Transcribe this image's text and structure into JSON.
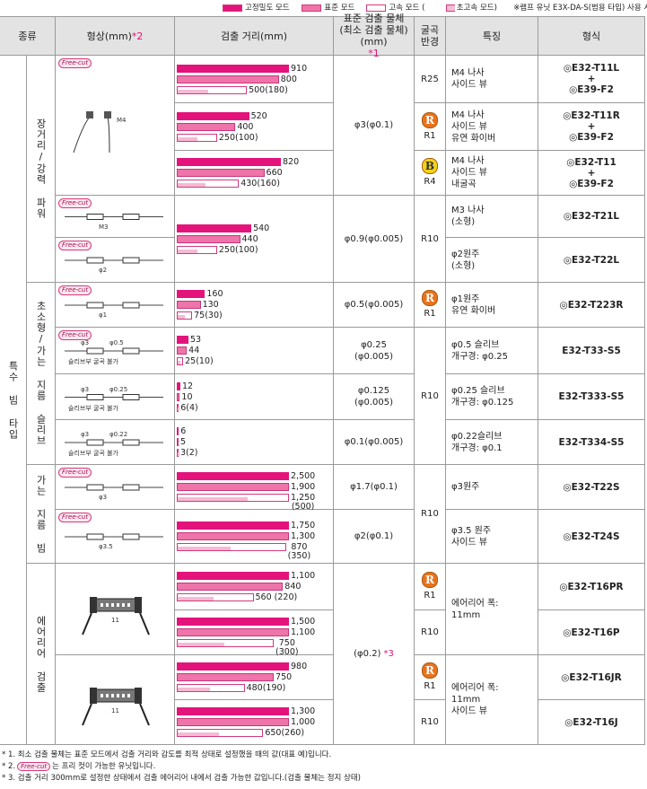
{
  "legend": {
    "items": [
      {
        "name": "고정밀도 모드",
        "color": "#e3137b"
      },
      {
        "name": "표준 모드",
        "color": "#ee74aa"
      },
      {
        "name": "고속 모드 (",
        "color": "#ffffff"
      },
      {
        "name": "초고속 모드)",
        "color": "#f7b9d4"
      }
    ],
    "note": "※램프 유닛 E3X-DA-S(범용 타입) 사용 시"
  },
  "header": {
    "type": "종류",
    "shape": "형상(mm)",
    "shape_note": "*2",
    "distance": "검출 거리(mm)",
    "object": "표준 검출 물체\n(최소 검출 물체)\n(mm)",
    "object_note": "*1",
    "bend": "굴곡\n반경",
    "feature": "특징",
    "model": "형식"
  },
  "category": "특수 빔 타입",
  "groups": [
    "장거리/강력 파워",
    "초소형/가는 지름 슬리브",
    "가는 지름 빔",
    "에어리어 검출"
  ],
  "shapes": [
    {
      "free_cut": "Free-cut",
      "labels": [
        "M4"
      ]
    },
    {
      "free_cut": "Free-cut",
      "labels": [
        "M3"
      ]
    },
    {
      "free_cut": "Free-cut",
      "labels": [
        "φ2"
      ]
    },
    {
      "free_cut": "Free-cut",
      "labels": [
        "φ1"
      ]
    },
    {
      "free_cut": "Free-cut",
      "labels": [
        "φ3",
        "φ0.5",
        "슬리브부 굴곡 불가"
      ]
    },
    {
      "labels": [
        "φ3",
        "φ0.25",
        "슬리브부 굴곡 불가"
      ]
    },
    {
      "labels": [
        "φ3",
        "φ0.22",
        "슬리브부 굴곡 불가"
      ]
    },
    {
      "free_cut": "Free-cut",
      "labels": [
        "φ3"
      ]
    },
    {
      "free_cut": "Free-cut",
      "labels": [
        "φ3.5"
      ]
    },
    {
      "labels": [
        "11"
      ]
    },
    {
      "labels": [
        "11"
      ]
    }
  ],
  "distances": [
    {
      "high": 910,
      "standard": 800,
      "fast": 500,
      "super_fast": 180,
      "labels": [
        "910",
        "800",
        "500(180)"
      ]
    },
    {
      "high": 520,
      "standard": 400,
      "fast": 250,
      "super_fast": 100,
      "labels": [
        "520",
        "400",
        "250(100)"
      ]
    },
    {
      "high": 820,
      "standard": 660,
      "fast": 430,
      "super_fast": 160,
      "labels": [
        "820",
        "660",
        "430(160)"
      ]
    },
    {
      "high": 540,
      "standard": 440,
      "fast": 250,
      "super_fast": 100,
      "labels": [
        "540",
        "440",
        "250(100)"
      ]
    },
    {
      "high": 160,
      "standard": 130,
      "fast": 75,
      "super_fast": 30,
      "labels": [
        "160",
        "130",
        "75(30)"
      ]
    },
    {
      "high": 53,
      "standard": 44,
      "fast": 25,
      "super_fast": 10,
      "labels": [
        "53",
        "44",
        "25(10)"
      ]
    },
    {
      "high": 12,
      "standard": 10,
      "fast": 6,
      "super_fast": 4,
      "labels": [
        "12",
        "10",
        "6(4)"
      ]
    },
    {
      "high": 6,
      "standard": 5,
      "fast": 3,
      "super_fast": 2,
      "labels": [
        "6",
        "5",
        "3(2)"
      ]
    },
    {
      "high": 2500,
      "standard": 1900,
      "fast": 1250,
      "super_fast": 500,
      "labels": [
        "2,500",
        "1,900",
        "1,250\n(500)"
      ]
    },
    {
      "high": 1750,
      "standard": 1300,
      "fast": 870,
      "super_fast": 350,
      "labels": [
        "1,750",
        "1,300",
        "870\n(350)"
      ]
    },
    {
      "high": 1100,
      "standard": 840,
      "fast": 560,
      "super_fast": 220,
      "labels": [
        "1,100",
        "840",
        "560 (220)"
      ]
    },
    {
      "high": 1500,
      "standard": 1100,
      "fast": 750,
      "super_fast": 300,
      "labels": [
        "1,500",
        "1,100",
        "750\n(300)"
      ]
    },
    {
      "high": 980,
      "standard": 750,
      "fast": 480,
      "super_fast": 190,
      "labels": [
        "980",
        "750",
        "480(190)"
      ]
    },
    {
      "high": 1300,
      "standard": 1000,
      "fast": 650,
      "super_fast": 260,
      "labels": [
        "1,300",
        "1,000",
        "650(260)"
      ]
    }
  ],
  "objects": [
    {
      "text": "φ3(φ0.1)"
    },
    {
      "text": "φ0.9(φ0.005)"
    },
    {
      "text": "φ0.5(φ0.005)"
    },
    {
      "text": "φ0.25\n(φ0.005)"
    },
    {
      "text": "φ0.125\n(φ0.005)"
    },
    {
      "text": "φ0.1(φ0.005)"
    },
    {
      "text": "φ1.7(φ0.1)"
    },
    {
      "text": "φ2(φ0.1)"
    },
    {
      "text": "(φ0.2)",
      "note": "*3"
    }
  ],
  "bends": [
    {
      "text": "R25"
    },
    {
      "badge": "R",
      "text": "R1"
    },
    {
      "badge": "B",
      "text": "R4"
    },
    {
      "text": "R10"
    },
    {
      "badge": "R",
      "text": "R1"
    },
    {
      "text": "R10"
    },
    {
      "text": "R10"
    },
    {
      "badge": "R",
      "text": "R1"
    },
    {
      "text": "R10"
    },
    {
      "badge": "R",
      "text": "R1"
    },
    {
      "text": "R10"
    }
  ],
  "features": [
    "M4 나사\n사이드 뷰",
    "M4 나사\n사이드 뷰\n유연 화이버",
    "M4 나사\n사이드 뷰\n내굴곡",
    "M3 나사\n(소형)",
    "φ2원주\n(소형)",
    "φ1원주\n유연 화이버",
    "φ0.5 슬리브\n개구경: φ0.25",
    "φ0.25 슬리브\n개구경: φ0.125",
    "φ0.22슬리브\n개구경: φ0.1",
    "φ3원주",
    "φ3.5 원주\n사이드 뷰",
    "에어리어 폭:\n11mm",
    "에어리어 폭:\n11mm\n사이드 뷰"
  ],
  "models": [
    [
      "◎E32-T11L",
      "+",
      "◎E39-F2"
    ],
    [
      "◎E32-T11R",
      "+",
      "◎E39-F2"
    ],
    [
      "◎E32-T11",
      "+",
      "◎E39-F2"
    ],
    [
      "◎E32-T21L"
    ],
    [
      "◎E32-T22L"
    ],
    [
      "◎E32-T223R"
    ],
    [
      "E32-T33-S5"
    ],
    [
      "E32-T333-S5"
    ],
    [
      "E32-T334-S5"
    ],
    [
      "◎E32-T22S"
    ],
    [
      "◎E32-T24S"
    ],
    [
      "◎E32-T16PR"
    ],
    [
      "◎E32-T16P"
    ],
    [
      "◎E32-T16JR"
    ],
    [
      "◎E32-T16J"
    ]
  ],
  "footnotes": [
    {
      "text": "* 1. 최소 검출 물체는 표준 모드에서 검출 거리와 감도를 최적 상태로 설정했을 때의 값(대표 예)입니다."
    },
    {
      "text": "* 2.",
      "badge": "Free-cut",
      "after": "는 프리 컷이 가능한 유닛입니다."
    },
    {
      "text": "* 3. 검출 거리 300mm로 설정한 상태에서 검출 에어리어 내에서 검출 가능한 값입니다.(검출 물체는 정지 상태)"
    }
  ]
}
